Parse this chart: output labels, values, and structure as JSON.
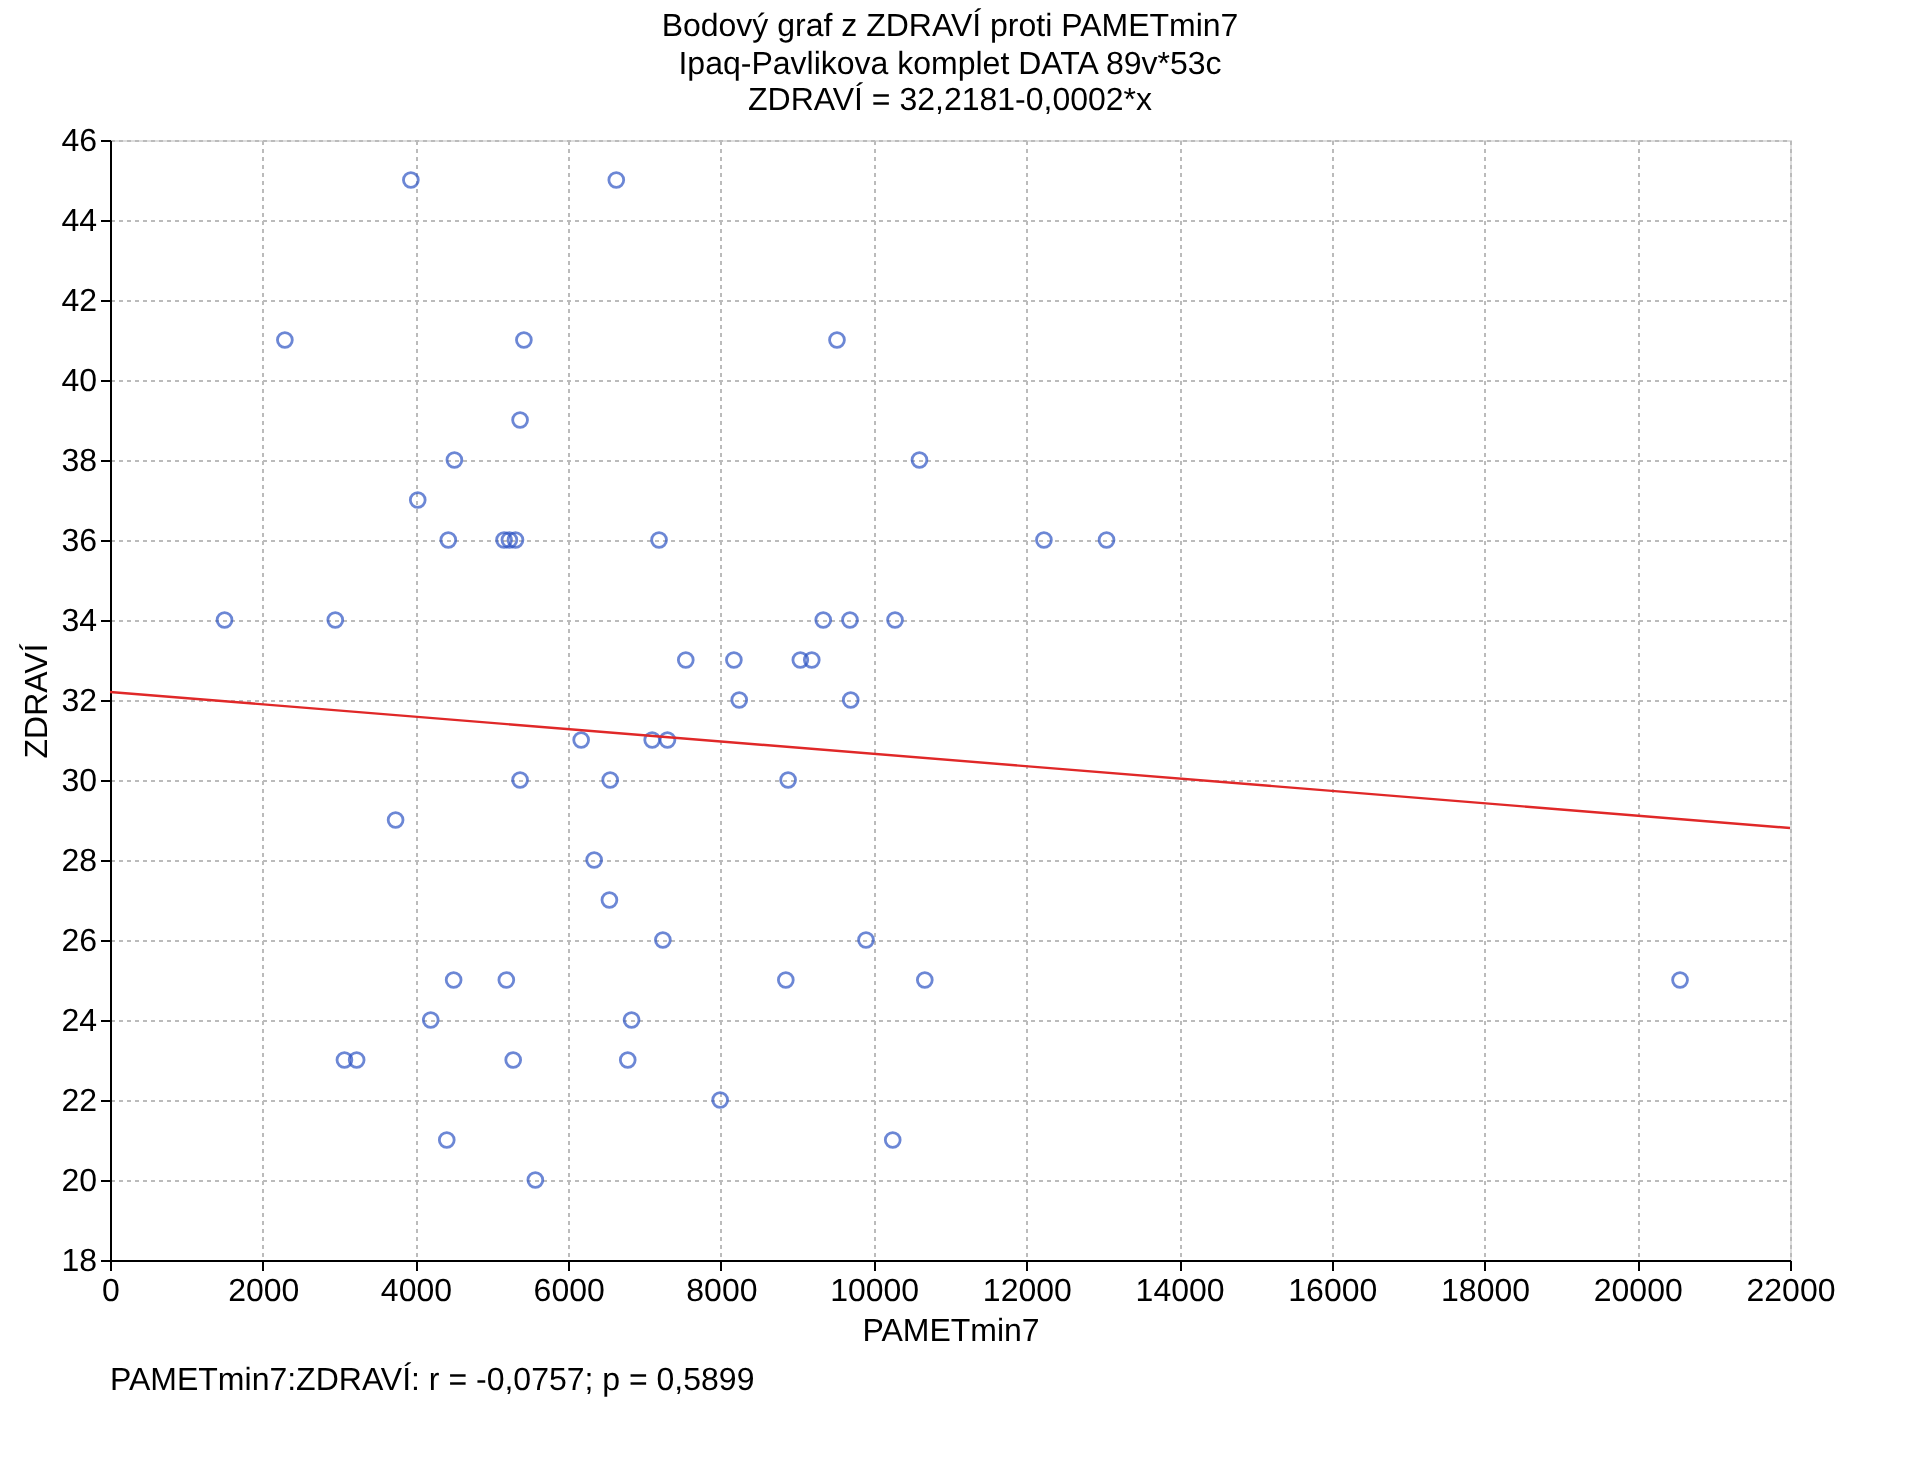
{
  "chart_data": {
    "type": "scatter",
    "title": "Bodový graf z ZDRAVÍ proti PAMETmin7",
    "subtitle": "Ipaq-Pavlikova komplet DATA 89v*53c",
    "xlabel": "PAMETmin7",
    "ylabel": "ZDRAVÍ",
    "annotations": [
      "ZDRAVÍ = 32,2181-0,0002*x",
      "PAMETmin7:ZDRAVÍ:   r = -0,0757; p = 0,5899"
    ],
    "series": [
      {
        "type": "scatter",
        "color": "#2f55c4",
        "marker": "circle",
        "x": [
          3940,
          6630,
          2290,
          5420,
          9520,
          5370,
          4510,
          10600,
          4030,
          4430,
          5160,
          5230,
          5310,
          7190,
          12230,
          13050,
          1500,
          2950,
          9340,
          9690,
          10280,
          7540,
          8170,
          9040,
          9190,
          8240,
          9700,
          6170,
          7100,
          7300,
          5370,
          6550,
          8880,
          3740,
          6340,
          6540,
          7240,
          9900,
          4500,
          5190,
          8850,
          10670,
          20560,
          4200,
          6830,
          3070,
          3230,
          5280,
          6780,
          7990,
          4410,
          10250,
          5570
        ],
        "values": [
          45,
          45,
          41,
          41,
          41,
          39,
          38,
          38,
          37,
          36,
          36,
          36,
          36,
          36,
          36,
          36,
          34,
          34,
          34,
          34,
          34,
          33,
          33,
          33,
          33,
          32,
          32,
          31,
          31,
          31,
          30,
          30,
          30,
          29,
          28,
          27,
          26,
          26,
          25,
          25,
          25,
          25,
          25,
          24,
          24,
          23,
          23,
          23,
          23,
          22,
          21,
          21,
          20
        ]
      },
      {
        "type": "line",
        "color": "#e02828",
        "x": [
          0,
          22000
        ],
        "values": [
          32.2,
          28.8
        ]
      }
    ],
    "xlim": [
      0,
      22000
    ],
    "xticks": [
      0,
      2000,
      4000,
      6000,
      8000,
      10000,
      12000,
      14000,
      16000,
      18000,
      20000,
      22000
    ],
    "ylim": [
      18,
      46
    ],
    "yticks": [
      18,
      20,
      22,
      24,
      26,
      28,
      30,
      32,
      34,
      36,
      38,
      40,
      42,
      44,
      46
    ],
    "grid": true
  }
}
